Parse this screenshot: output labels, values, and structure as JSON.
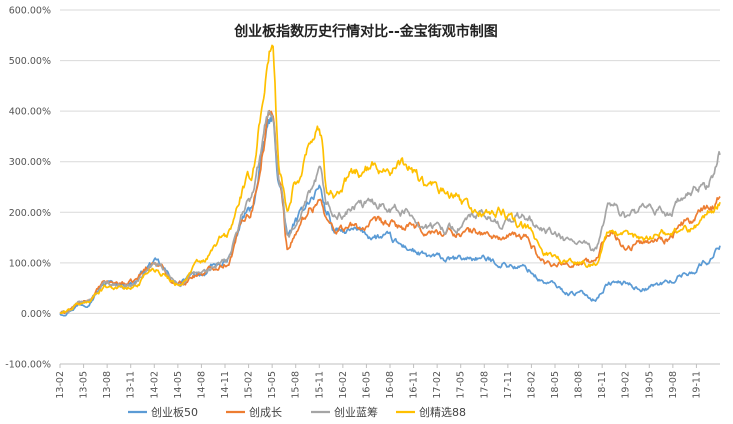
{
  "chart_data": {
    "type": "line",
    "title": "创业板指数历史行情对比--金宝街观市制图",
    "xlabel": "",
    "ylabel": "",
    "y_unit": "%",
    "ylim": [
      -100,
      600
    ],
    "yticks": [
      "-100.00%",
      "0.00%",
      "100.00%",
      "200.00%",
      "300.00%",
      "400.00%",
      "500.00%",
      "600.00%"
    ],
    "ytick_values": [
      -100,
      0,
      100,
      200,
      300,
      400,
      500,
      600
    ],
    "x_categories": [
      "13-02",
      "13-05",
      "13-08",
      "13-11",
      "14-02",
      "14-05",
      "14-08",
      "14-11",
      "15-02",
      "15-05",
      "15-08",
      "15-11",
      "16-02",
      "16-05",
      "16-08",
      "16-11",
      "17-02",
      "17-05",
      "17-08",
      "17-11",
      "18-02",
      "18-05",
      "18-08",
      "18-11",
      "19-02",
      "19-05",
      "19-08",
      "19-11"
    ],
    "x_time_range": [
      0,
      84
    ],
    "grid": true,
    "legend_position": "bottom",
    "series": [
      {
        "name": "创业板50",
        "color": "#5B9BD5",
        "keypoints": [
          [
            0,
            0
          ],
          [
            3,
            20
          ],
          [
            6,
            60
          ],
          [
            9,
            60
          ],
          [
            12,
            100
          ],
          [
            15,
            60
          ],
          [
            18,
            80
          ],
          [
            21,
            100
          ],
          [
            24,
            200
          ],
          [
            27,
            380
          ],
          [
            28,
            250
          ],
          [
            29,
            150
          ],
          [
            30,
            180
          ],
          [
            32,
            230
          ],
          [
            33,
            250
          ],
          [
            34,
            200
          ],
          [
            35,
            160
          ],
          [
            38,
            160
          ],
          [
            41,
            150
          ],
          [
            44,
            130
          ],
          [
            47,
            110
          ],
          [
            50,
            105
          ],
          [
            53,
            110
          ],
          [
            56,
            100
          ],
          [
            59,
            90
          ],
          [
            62,
            60
          ],
          [
            65,
            40
          ],
          [
            66,
            40
          ],
          [
            68,
            30
          ],
          [
            70,
            60
          ],
          [
            72,
            60
          ],
          [
            74,
            50
          ],
          [
            77,
            60
          ],
          [
            80,
            80
          ],
          [
            82,
            100
          ],
          [
            83,
            110
          ],
          [
            84,
            135
          ]
        ]
      },
      {
        "name": "创成长",
        "color": "#ED7D31",
        "keypoints": [
          [
            0,
            0
          ],
          [
            3,
            20
          ],
          [
            6,
            60
          ],
          [
            9,
            60
          ],
          [
            12,
            100
          ],
          [
            15,
            60
          ],
          [
            18,
            80
          ],
          [
            21,
            100
          ],
          [
            24,
            200
          ],
          [
            27,
            400
          ],
          [
            28,
            250
          ],
          [
            29,
            130
          ],
          [
            30,
            160
          ],
          [
            32,
            210
          ],
          [
            33,
            230
          ],
          [
            34,
            180
          ],
          [
            35,
            170
          ],
          [
            38,
            170
          ],
          [
            41,
            175
          ],
          [
            44,
            170
          ],
          [
            47,
            160
          ],
          [
            50,
            160
          ],
          [
            53,
            160
          ],
          [
            56,
            150
          ],
          [
            59,
            150
          ],
          [
            62,
            100
          ],
          [
            65,
            100
          ],
          [
            66,
            100
          ],
          [
            68,
            100
          ],
          [
            70,
            170
          ],
          [
            72,
            130
          ],
          [
            74,
            140
          ],
          [
            77,
            150
          ],
          [
            80,
            180
          ],
          [
            82,
            200
          ],
          [
            83,
            210
          ],
          [
            84,
            235
          ]
        ]
      },
      {
        "name": "创业蓝筹",
        "color": "#A5A5A5",
        "keypoints": [
          [
            0,
            0
          ],
          [
            3,
            20
          ],
          [
            6,
            60
          ],
          [
            9,
            55
          ],
          [
            12,
            95
          ],
          [
            15,
            60
          ],
          [
            18,
            80
          ],
          [
            21,
            100
          ],
          [
            24,
            220
          ],
          [
            27,
            400
          ],
          [
            28,
            260
          ],
          [
            29,
            150
          ],
          [
            30,
            170
          ],
          [
            32,
            230
          ],
          [
            33,
            270
          ],
          [
            34,
            210
          ],
          [
            35,
            190
          ],
          [
            38,
            210
          ],
          [
            41,
            220
          ],
          [
            44,
            200
          ],
          [
            47,
            170
          ],
          [
            50,
            170
          ],
          [
            53,
            190
          ],
          [
            56,
            180
          ],
          [
            59,
            190
          ],
          [
            62,
            160
          ],
          [
            65,
            140
          ],
          [
            66,
            140
          ],
          [
            68,
            120
          ],
          [
            70,
            220
          ],
          [
            72,
            190
          ],
          [
            74,
            200
          ],
          [
            77,
            200
          ],
          [
            80,
            230
          ],
          [
            82,
            250
          ],
          [
            83,
            270
          ],
          [
            84,
            310
          ]
        ]
      },
      {
        "name": "创精选88",
        "color": "#FFC000",
        "keypoints": [
          [
            0,
            0
          ],
          [
            3,
            20
          ],
          [
            6,
            55
          ],
          [
            9,
            50
          ],
          [
            12,
            90
          ],
          [
            15,
            60
          ],
          [
            18,
            100
          ],
          [
            21,
            150
          ],
          [
            24,
            260
          ],
          [
            27,
            520
          ],
          [
            28,
            280
          ],
          [
            29,
            200
          ],
          [
            30,
            260
          ],
          [
            32,
            350
          ],
          [
            33,
            370
          ],
          [
            34,
            250
          ],
          [
            35,
            240
          ],
          [
            38,
            280
          ],
          [
            41,
            290
          ],
          [
            44,
            290
          ],
          [
            47,
            250
          ],
          [
            50,
            230
          ],
          [
            53,
            200
          ],
          [
            56,
            200
          ],
          [
            59,
            170
          ],
          [
            62,
            120
          ],
          [
            65,
            100
          ],
          [
            66,
            100
          ],
          [
            68,
            100
          ],
          [
            70,
            160
          ],
          [
            72,
            150
          ],
          [
            74,
            150
          ],
          [
            77,
            160
          ],
          [
            80,
            170
          ],
          [
            82,
            190
          ],
          [
            83,
            200
          ],
          [
            84,
            220
          ]
        ]
      }
    ]
  }
}
